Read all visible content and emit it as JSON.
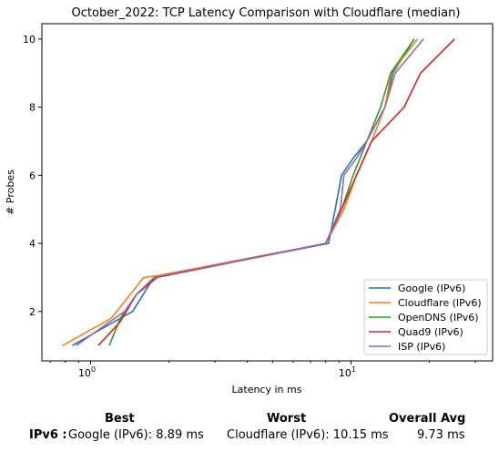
{
  "chart_data": {
    "type": "line",
    "title": "October_2022: TCP Latency Comparison with Cloudflare (median)",
    "xlabel": "Latency in ms",
    "ylabel": "# Probes",
    "x_scale": "log",
    "xlim": [
      0.65,
      35
    ],
    "ylim": [
      0.55,
      10.45
    ],
    "x_ticks": [
      {
        "value": 1,
        "label": "10^0"
      },
      {
        "value": 10,
        "label": "10^1"
      }
    ],
    "y_ticks": [
      2,
      4,
      6,
      8,
      10
    ],
    "grid": false,
    "legend_position": "lower-right",
    "series": [
      {
        "name": "Google (IPv6)",
        "color": "#1f77b4",
        "points": [
          [
            0.85,
            1
          ],
          [
            1.3,
            1.8
          ],
          [
            1.45,
            2
          ],
          [
            1.75,
            3
          ],
          [
            8.2,
            4
          ],
          [
            8.7,
            5
          ],
          [
            9.2,
            6
          ],
          [
            10.2,
            6.5
          ],
          [
            11.5,
            7
          ],
          [
            13.5,
            8
          ],
          [
            14.5,
            9
          ],
          [
            17.5,
            10
          ]
        ]
      },
      {
        "name": "Cloudflare (IPv6)",
        "color": "#ff7f0e",
        "points": [
          [
            0.78,
            1
          ],
          [
            1.2,
            1.8
          ],
          [
            1.6,
            3
          ],
          [
            1.8,
            3.05
          ],
          [
            8,
            4
          ],
          [
            9.4,
            5
          ],
          [
            10.5,
            6
          ],
          [
            12,
            7
          ],
          [
            13.5,
            8
          ],
          [
            14.3,
            9
          ],
          [
            18,
            10
          ]
        ]
      },
      {
        "name": "OpenDNS (IPv6)",
        "color": "#2ca02c",
        "points": [
          [
            1.18,
            1
          ],
          [
            1.3,
            1.8
          ],
          [
            1.5,
            2.5
          ],
          [
            1.8,
            3
          ],
          [
            8,
            4
          ],
          [
            9.2,
            5
          ],
          [
            10.2,
            6
          ],
          [
            11.5,
            7
          ],
          [
            13,
            8
          ],
          [
            14.2,
            9
          ],
          [
            17.5,
            10
          ]
        ]
      },
      {
        "name": "Quad9 (IPv6)",
        "color": "#d62728",
        "points": [
          [
            1.07,
            1
          ],
          [
            1.3,
            1.7
          ],
          [
            1.5,
            2.5
          ],
          [
            1.8,
            3
          ],
          [
            8,
            4
          ],
          [
            9.2,
            5
          ],
          [
            10.5,
            6
          ],
          [
            12,
            7
          ],
          [
            16,
            8
          ],
          [
            18.5,
            9
          ],
          [
            25,
            10
          ]
        ]
      },
      {
        "name": "ISP (IPv6)",
        "color": "#9467bd",
        "points": [
          [
            0.88,
            1
          ],
          [
            1.35,
            2
          ],
          [
            1.5,
            2.5
          ],
          [
            1.75,
            3
          ],
          [
            8,
            4
          ],
          [
            9.1,
            5
          ],
          [
            9.4,
            6
          ],
          [
            10.5,
            6.5
          ],
          [
            11.5,
            7
          ],
          [
            13.5,
            8
          ],
          [
            14.8,
            9
          ],
          [
            19,
            10
          ]
        ]
      }
    ]
  },
  "summary": {
    "best_header": "Best",
    "worst_header": "Worst",
    "avg_header": "Overall Avg",
    "row_label": "IPv6 :",
    "best_value": "Google (IPv6): 8.89 ms",
    "worst_value": "Cloudflare (IPv6): 10.15 ms",
    "avg_value": "9.73 ms"
  }
}
